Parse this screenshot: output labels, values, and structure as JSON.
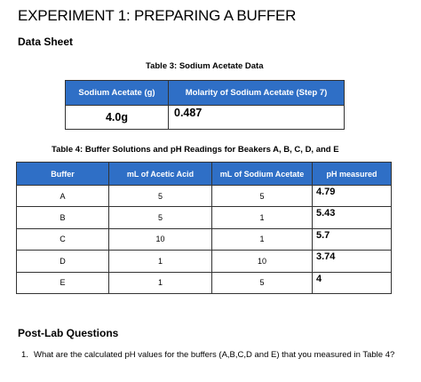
{
  "title": "EXPERIMENT 1: PREPARING A BUFFER",
  "data_sheet_heading": "Data Sheet",
  "table3": {
    "caption": "Table 3: Sodium Acetate Data",
    "headers": [
      "Sodium Acetate (g)",
      "Molarity of Sodium Acetate (Step 7)"
    ],
    "row": [
      "4.0g",
      "0.487"
    ]
  },
  "table4": {
    "caption": "Table 4: Buffer Solutions and pH Readings for Beakers A, B, C, D, and E",
    "headers": [
      "Buffer",
      "mL of Acetic Acid",
      "mL of Sodium Acetate",
      "pH measured"
    ],
    "rows": [
      [
        "A",
        "5",
        "5",
        "4.79"
      ],
      [
        "B",
        "5",
        "1",
        "5.43"
      ],
      [
        "C",
        "10",
        "1",
        "5.7"
      ],
      [
        "D",
        "1",
        "10",
        "3.74"
      ],
      [
        "E",
        "1",
        "5",
        "4"
      ]
    ]
  },
  "postlab_heading": "Post-Lab Questions",
  "question1": {
    "number": "1.",
    "text": "What are the calculated pH values for the buffers (A,B,C,D and E) that you measured in Table 4?"
  }
}
